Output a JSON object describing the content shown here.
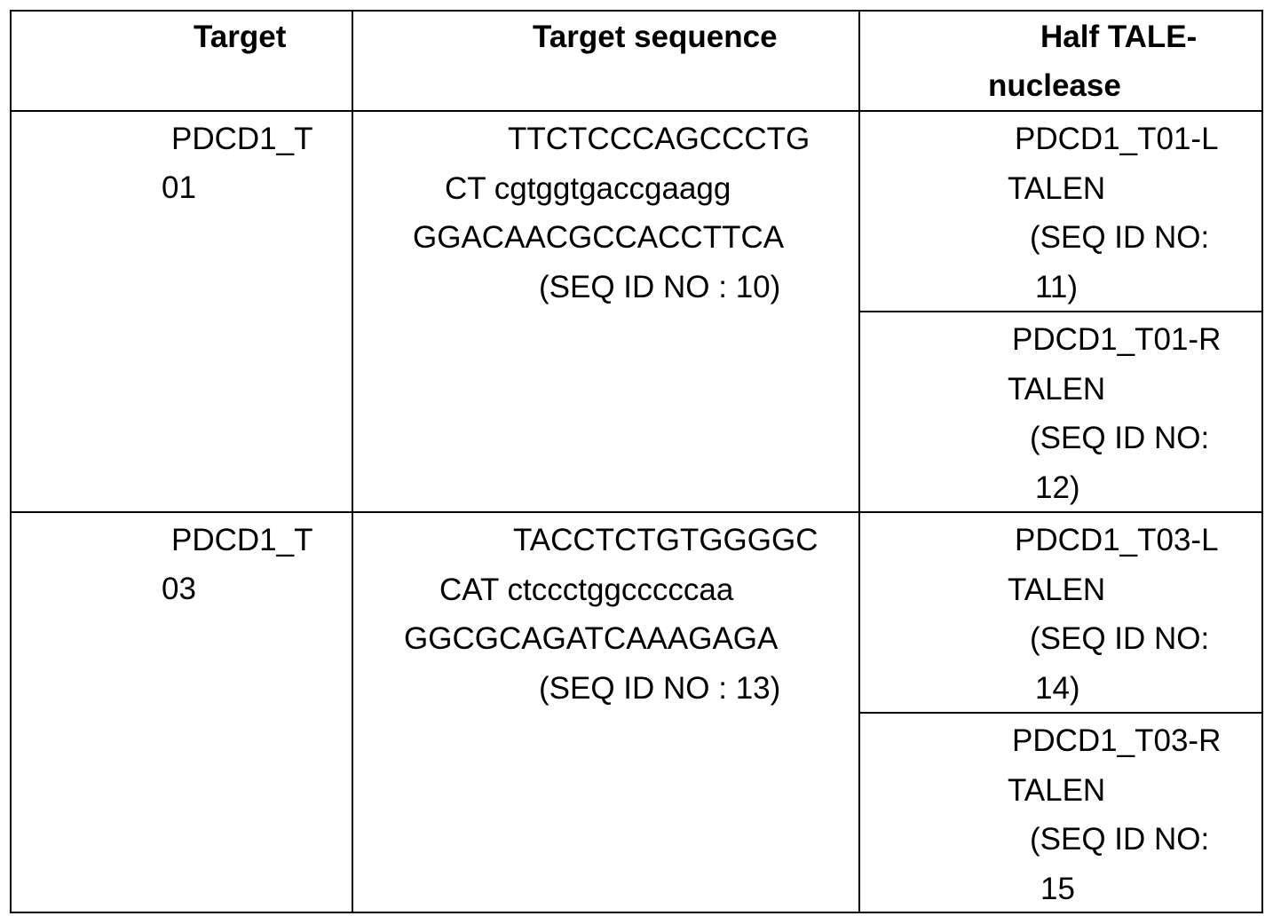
{
  "table": {
    "header": [
      [
        "Target"
      ],
      [
        "Target sequence"
      ],
      [
        "Half TALE-",
        "nuclease"
      ]
    ],
    "rows": [
      {
        "target": [
          "PDCD1_T",
          "01"
        ],
        "sequence": [
          "TTCTCCCAGCCCTG",
          "CT cgtggtgaccgaagg",
          "GGACAACGCCACCTTCA",
          "(SEQ ID NO : 10)"
        ],
        "halves": [
          [
            "PDCD1_T01-L",
            "TALEN",
            "(SEQ ID NO:",
            "11)"
          ],
          [
            "PDCD1_T01-R",
            "TALEN",
            "(SEQ ID NO:",
            "12)"
          ]
        ]
      },
      {
        "target": [
          "PDCD1_T",
          "03"
        ],
        "sequence": [
          "TACCTCTGTGGGGC",
          "CAT ctccctggcccccaa",
          "GGCGCAGATCAAAGAGA",
          "(SEQ ID NO : 13)"
        ],
        "halves": [
          [
            "PDCD1_T03-L",
            "TALEN",
            "(SEQ ID NO:",
            "14)"
          ],
          [
            "PDCD1_T03-R",
            "TALEN",
            "(SEQ ID NO:",
            "15"
          ]
        ]
      }
    ]
  }
}
